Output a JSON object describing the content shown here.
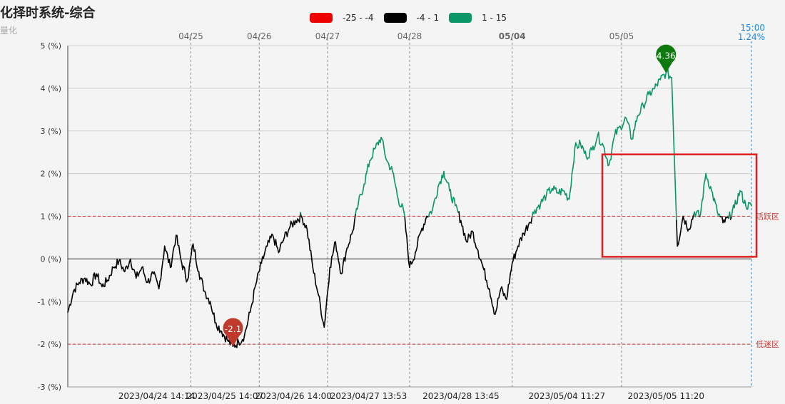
{
  "header": {
    "title": "化择时系统-综合",
    "subtitle": "量化"
  },
  "legend": {
    "items": [
      {
        "label": "-25 - -4",
        "color": "#ee0000"
      },
      {
        "label": "-4 - 1",
        "color": "#000000"
      },
      {
        "label": "1 - 15",
        "color": "#0b9668"
      }
    ]
  },
  "corner": {
    "time": "15:00",
    "value": "1.24%"
  },
  "chart_data": {
    "type": "line",
    "y_ticks": [
      5,
      4,
      3,
      2,
      1,
      0,
      -1,
      -2,
      -3
    ],
    "y_unit": "(%)",
    "ylim": [
      -3,
      5
    ],
    "top_labels": [
      "04/25",
      "04/26",
      "04/27",
      "04/28",
      "05/04",
      "05/05"
    ],
    "bottom_labels": [
      "2023/04/24 14:14",
      "2023/04/25 14:07",
      "2023/04/26 14:00",
      "2023/04/27 13:53",
      "2023/04/28 13:45",
      "2023/05/04 11:27",
      "2023/05/05 11:20"
    ],
    "day_boundaries": [
      0.08,
      0.18,
      0.28,
      0.38,
      0.5,
      0.65,
      0.81,
      0.94
    ],
    "reference_lines": [
      {
        "value": 1,
        "label": "活跃区",
        "color": "#cc3333"
      },
      {
        "value": -2,
        "label": "低迷区",
        "color": "#cc3333"
      }
    ],
    "threshold_color_rule": {
      "above": 1,
      "above_color": "#0b9668",
      "below_color": "#000000"
    },
    "markers": [
      {
        "label": "4.36",
        "value": 4.36,
        "type": "max",
        "color": "#0d7a0d"
      },
      {
        "label": "-2.1",
        "value": -2.1,
        "type": "min",
        "color": "#c0392b"
      }
    ],
    "highlight_box": {
      "from_value": 0.05,
      "to_value": 2.45,
      "color": "#e02020"
    },
    "series": [
      {
        "values": [
          -1.25,
          -0.75,
          -0.55,
          -0.45,
          -0.6,
          -0.35,
          -0.65,
          -0.5,
          -0.2,
          -0.05,
          -0.3,
          0.0,
          -0.45,
          -0.2,
          -0.55,
          -0.35,
          -0.7,
          0.3,
          -0.2,
          0.55,
          -0.1,
          -0.5,
          0.35,
          -0.3,
          -0.75,
          -1.0,
          -1.5,
          -1.7,
          -1.9,
          -2.05,
          -1.95,
          -1.8,
          -1.25,
          -0.6,
          -0.1,
          0.3,
          0.55,
          0.15,
          0.5,
          0.75,
          0.9,
          1.0,
          0.7,
          -0.2,
          -0.85,
          -1.6,
          -0.2,
          0.4,
          -0.35,
          0.25,
          0.65,
          1.3,
          1.75,
          2.3,
          2.6,
          2.85,
          2.3,
          2.05,
          1.4,
          1.1,
          -0.2,
          0.15,
          0.65,
          1.0,
          1.15,
          1.7,
          2.05,
          1.6,
          1.25,
          0.9,
          0.4,
          0.65,
          0.2,
          -0.25,
          -0.7,
          -1.3,
          -0.7,
          -0.95,
          -0.1,
          0.3,
          0.6,
          0.85,
          1.15,
          1.3,
          1.5,
          1.65,
          1.55,
          1.6,
          1.4,
          2.6,
          2.7,
          2.4,
          2.55,
          2.9,
          2.65,
          2.2,
          2.9,
          3.1,
          3.3,
          2.8,
          3.35,
          3.6,
          3.85,
          4.0,
          4.2,
          4.36,
          4.25,
          0.3,
          1.0,
          0.7,
          1.1,
          1.0,
          2.0,
          1.6,
          1.1,
          0.85,
          0.95,
          1.2,
          1.6,
          1.25,
          1.24
        ]
      }
    ]
  }
}
